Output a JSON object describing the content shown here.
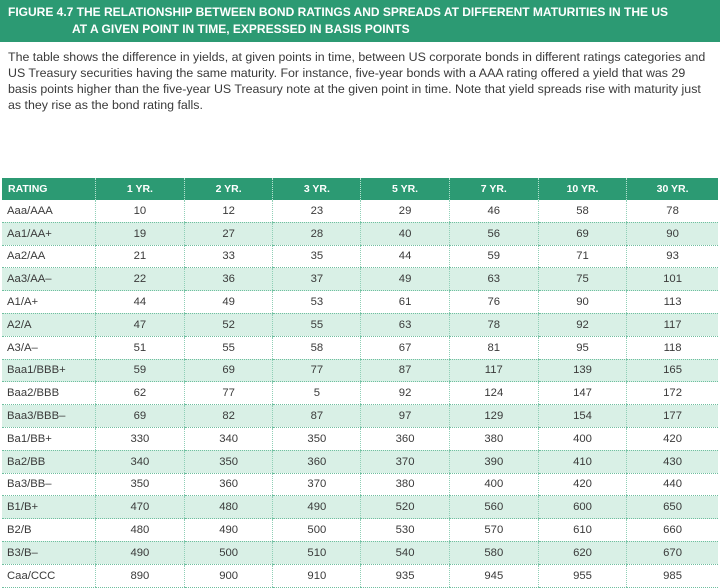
{
  "figure": {
    "title_line1": "FIGURE 4.7  THE RELATIONSHIP BETWEEN BOND RATINGS AND SPREADS AT DIFFERENT MATURITIES IN THE US",
    "title_line2": "AT A GIVEN POINT IN TIME, EXPRESSED IN BASIS POINTS",
    "caption": "The table shows the difference in yields, at given points in time, between US corporate bonds in different ratings categories and US Treasury securities having the same maturity. For instance, five-year bonds with a AAA rating offered a yield that was 29 basis points higher than the five-year US Treasury note at the given point in time. Note that yield spreads rise with maturity just as they rise as the bond rating falls."
  },
  "table": {
    "headers": [
      "RATING",
      "1 YR.",
      "2 YR.",
      "3 YR.",
      "5 YR.",
      "7 YR.",
      "10 YR.",
      "30 YR."
    ],
    "rows": [
      [
        "Aaa/AAA",
        "10",
        "12",
        "23",
        "29",
        "46",
        "58",
        "78"
      ],
      [
        "Aa1/AA+",
        "19",
        "27",
        "28",
        "40",
        "56",
        "69",
        "90"
      ],
      [
        "Aa2/AA",
        "21",
        "33",
        "35",
        "44",
        "59",
        "71",
        "93"
      ],
      [
        "Aa3/AA–",
        "22",
        "36",
        "37",
        "49",
        "63",
        "75",
        "101"
      ],
      [
        "A1/A+",
        "44",
        "49",
        "53",
        "61",
        "76",
        "90",
        "113"
      ],
      [
        "A2/A",
        "47",
        "52",
        "55",
        "63",
        "78",
        "92",
        "117"
      ],
      [
        "A3/A–",
        "51",
        "55",
        "58",
        "67",
        "81",
        "95",
        "118"
      ],
      [
        "Baa1/BBB+",
        "59",
        "69",
        "77",
        "87",
        "117",
        "139",
        "165"
      ],
      [
        "Baa2/BBB",
        "62",
        "77",
        "5",
        "92",
        "124",
        "147",
        "172"
      ],
      [
        "Baa3/BBB–",
        "69",
        "82",
        "87",
        "97",
        "129",
        "154",
        "177"
      ],
      [
        "Ba1/BB+",
        "330",
        "340",
        "350",
        "360",
        "380",
        "400",
        "420"
      ],
      [
        "Ba2/BB",
        "340",
        "350",
        "360",
        "370",
        "390",
        "410",
        "430"
      ],
      [
        "Ba3/BB–",
        "350",
        "360",
        "370",
        "380",
        "400",
        "420",
        "440"
      ],
      [
        "B1/B+",
        "470",
        "480",
        "490",
        "520",
        "560",
        "600",
        "650"
      ],
      [
        "B2/B",
        "480",
        "490",
        "500",
        "530",
        "570",
        "610",
        "660"
      ],
      [
        "B3/B–",
        "490",
        "500",
        "510",
        "540",
        "580",
        "620",
        "670"
      ],
      [
        "Caa/CCC",
        "890",
        "900",
        "910",
        "935",
        "945",
        "955",
        "985"
      ]
    ]
  },
  "colors": {
    "accent": "#2c9a73",
    "row_tint": "#d9f0e6"
  }
}
